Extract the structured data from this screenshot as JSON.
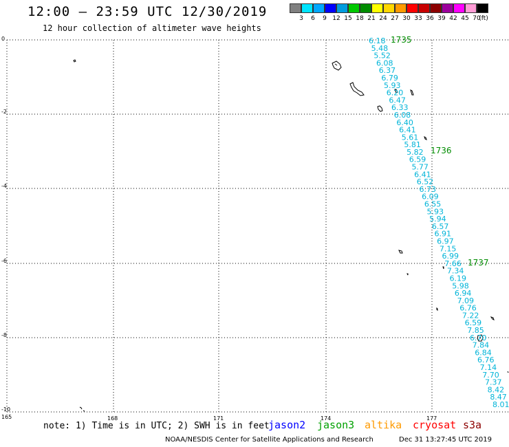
{
  "title": "12:00 – 23:59 UTC 12/30/2019",
  "subtitle": "12 hour collection of altimeter wave heights",
  "legend": {
    "colors": [
      "#808080",
      "#00e5ff",
      "#00a8ff",
      "#0000ff",
      "#009cde",
      "#00c800",
      "#008c00",
      "#ffff00",
      "#ffd700",
      "#ff9a00",
      "#ff0000",
      "#c80000",
      "#8c0000",
      "#9c009c",
      "#ff00ff",
      "#ff9cd6",
      "#000000"
    ],
    "labels": [
      "3",
      "6",
      "9",
      "12",
      "15",
      "18",
      "21",
      "24",
      "27",
      "30",
      "33",
      "36",
      "39",
      "42",
      "45",
      "70",
      "(ft)"
    ]
  },
  "axes": {
    "x_ticks": [
      "165",
      "168",
      "171",
      "174",
      "177"
    ],
    "y_ticks": [
      "0",
      "-2",
      "-4",
      "-6",
      "-8",
      "-10"
    ]
  },
  "time_labels": [
    "1735",
    "1736",
    "1737"
  ],
  "wave_heights": [
    "6.18",
    "5.48",
    "5.52",
    "6.08",
    "6.37",
    "6.79",
    "5.93",
    "6.20",
    "6.47",
    "6.33",
    "6.08",
    "6.40",
    "6.41",
    "5.61",
    "5.81",
    "5.82",
    "6.59",
    "5.77",
    "6.41",
    "6.52",
    "6.73",
    "6.09",
    "6.55",
    "5.93",
    "5.94",
    "6.57",
    "6.91",
    "6.97",
    "7.15",
    "6.99",
    "7.66",
    "7.34",
    "6.19",
    "5.98",
    "6.94",
    "7.09",
    "6.76",
    "7.22",
    "6.59",
    "7.85",
    "6.70",
    "7.84",
    "6.84",
    "6.76",
    "7.14",
    "7.70",
    "7.37",
    "8.42",
    "8.47",
    "8.01"
  ],
  "colors": {
    "wave_text": "#00b4d8",
    "time_text": "#008c00",
    "jason2": "#0000ff",
    "jason3": "#00a000",
    "altika": "#ff9a00",
    "cryosat": "#ff0000",
    "s3a": "#8c0000"
  },
  "note": "note: 1) Time is in UTC; 2) SWH is in feet",
  "satellites": {
    "jason2": "jason2",
    "jason3": "jason3",
    "altika": "altika",
    "cryosat": "cryosat",
    "s3a": "s3a"
  },
  "footer": "NOAA/NESDIS Center for Satellite Applications and Research",
  "footer_time": "Dec 31 13:27:45 UTC 2019"
}
